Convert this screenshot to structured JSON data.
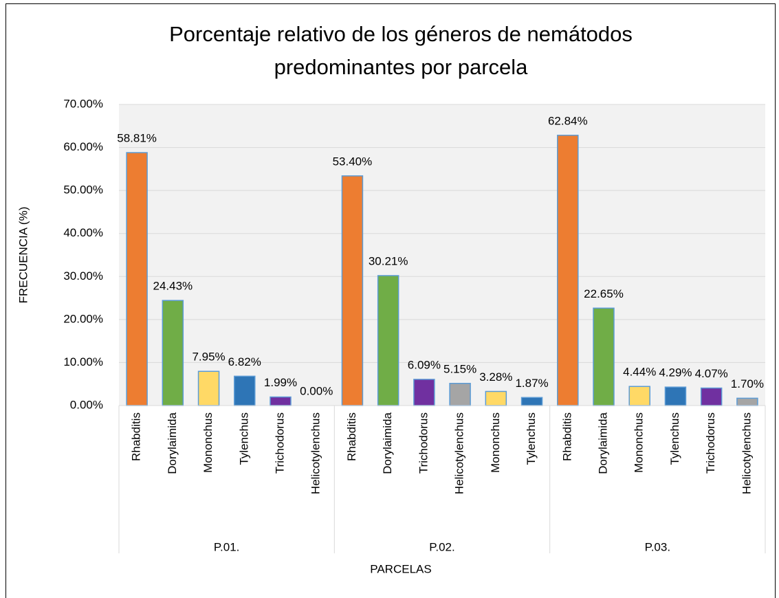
{
  "chart_data": {
    "type": "bar",
    "title": [
      "Porcentaje relativo de los géneros de nemátodos",
      "predominantes por parcela"
    ],
    "x_label": "PARCELAS",
    "y_label": "FRECUENCIA (%)",
    "ylim": [
      0,
      70
    ],
    "yticks": [
      {
        "value": 0,
        "label": "0.00%"
      },
      {
        "value": 10,
        "label": "10.00%"
      },
      {
        "value": 20,
        "label": "20.00%"
      },
      {
        "value": 30,
        "label": "30.00%"
      },
      {
        "value": 40,
        "label": "40.00%"
      },
      {
        "value": 50,
        "label": "50.00%"
      },
      {
        "value": 60,
        "label": "60.00%"
      },
      {
        "value": 70,
        "label": "70.00%"
      }
    ],
    "grid": true,
    "groups": [
      {
        "name": "P.01.",
        "categories": [
          "Rhabditis",
          "Dorylaimida",
          "Mononchus",
          "Tylenchus",
          "Trichodorus",
          "Helicotylenchus"
        ],
        "values": [
          58.81,
          24.43,
          7.95,
          6.82,
          1.99,
          0.0
        ],
        "value_labels": [
          "58.81%",
          "24.43%",
          "7.95%",
          "6.82%",
          "1.99%",
          "0.00%"
        ],
        "colors": [
          "#ed7d31",
          "#70ad47",
          "#ffd966",
          "#2e75b6",
          "#7030a0",
          "#a5a5a5"
        ]
      },
      {
        "name": "P.02.",
        "categories": [
          "Rhabditis",
          "Dorylaimida",
          "Trichodorus",
          "Helicotylenchus",
          "Mononchus",
          "Tylenchus"
        ],
        "values": [
          53.4,
          30.21,
          6.09,
          5.15,
          3.28,
          1.87
        ],
        "value_labels": [
          "53.40%",
          "30.21%",
          "6.09%",
          "5.15%",
          "3.28%",
          "1.87%"
        ],
        "colors": [
          "#ed7d31",
          "#70ad47",
          "#7030a0",
          "#a5a5a5",
          "#ffd966",
          "#2e75b6"
        ]
      },
      {
        "name": "P.03.",
        "categories": [
          "Rhabditis",
          "Dorylaimida",
          "Mononchus",
          "Tylenchus",
          "Trichodorus",
          "Helicotylenchus"
        ],
        "values": [
          62.84,
          22.65,
          4.44,
          4.29,
          4.07,
          1.7
        ],
        "value_labels": [
          "62.84%",
          "22.65%",
          "4.44%",
          "4.29%",
          "4.07%",
          "1.70%"
        ],
        "colors": [
          "#ed7d31",
          "#70ad47",
          "#ffd966",
          "#2e75b6",
          "#7030a0",
          "#a5a5a5"
        ]
      }
    ]
  }
}
